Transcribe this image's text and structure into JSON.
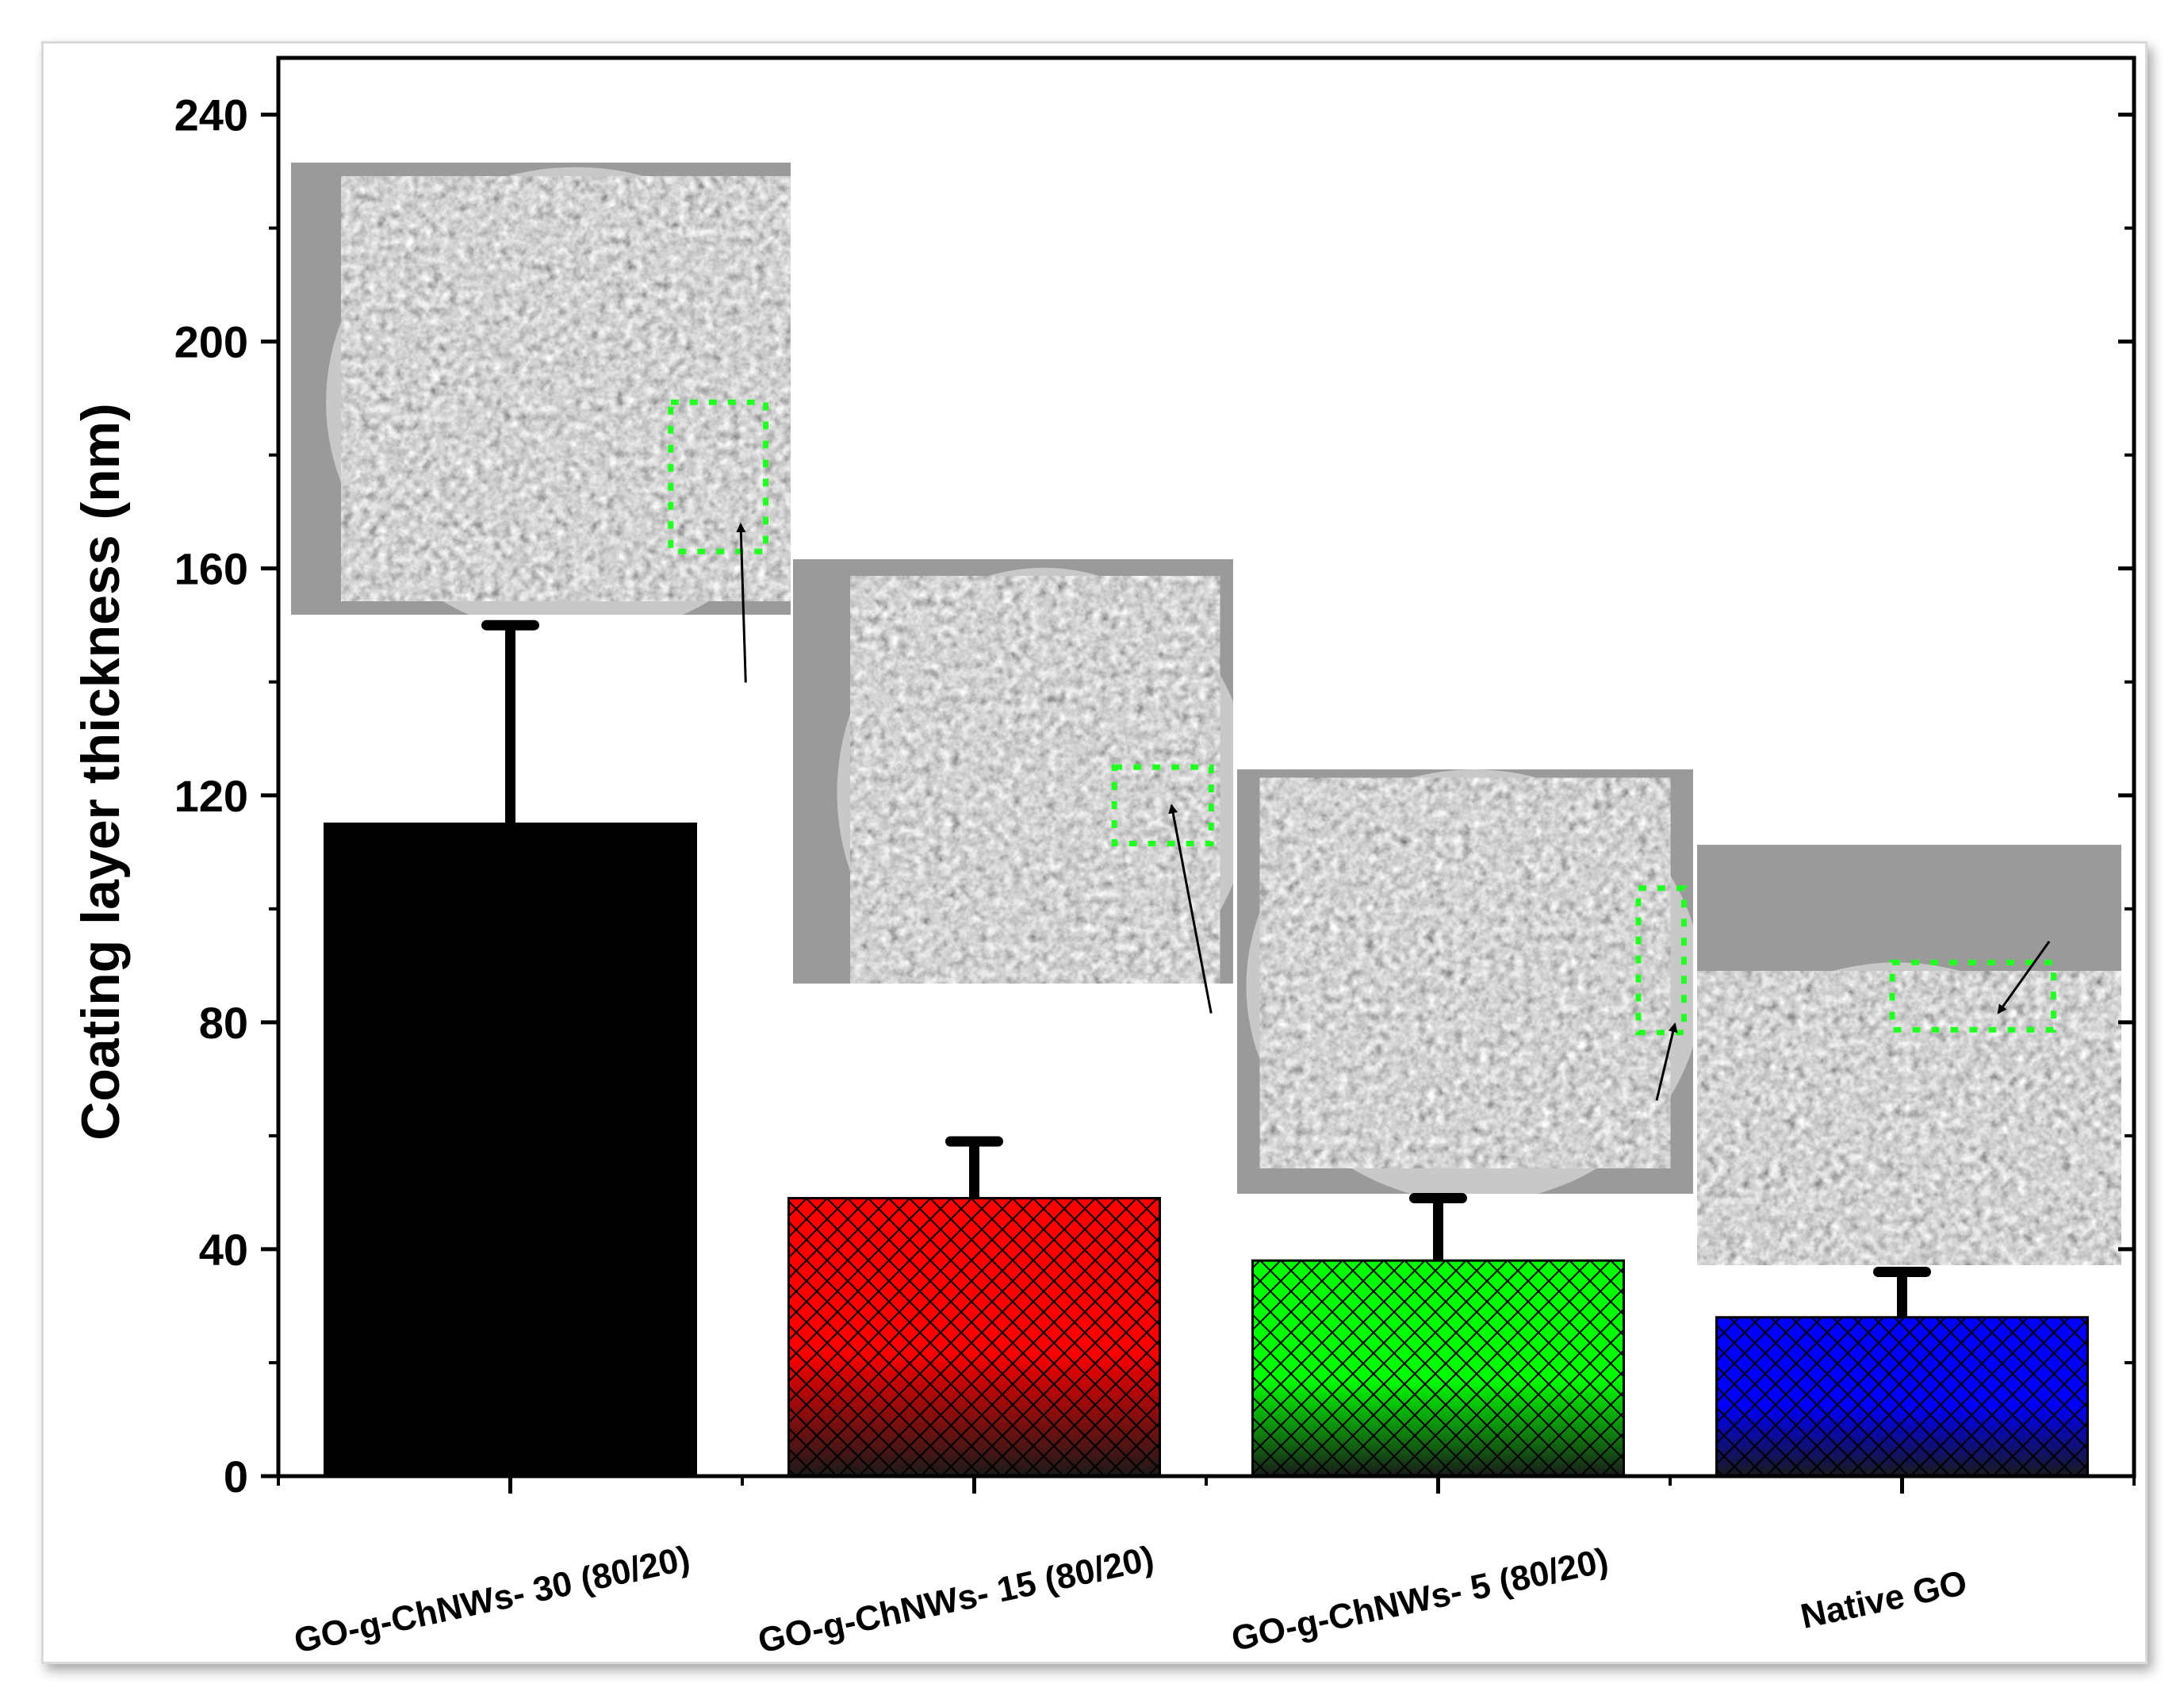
{
  "chart_data": {
    "type": "bar",
    "title": "",
    "xlabel": "",
    "ylabel": "Coating layer thickness (nm)",
    "ylim": [
      0,
      250
    ],
    "yticks": [
      0,
      40,
      80,
      120,
      160,
      200,
      240
    ],
    "grid": false,
    "legend": "none",
    "categories": [
      "GO-g-ChNWs- 30 (80/20)",
      "GO-g-ChNWs- 15 (80/20)",
      "GO-g-ChNWs- 5 (80/20)",
      "Native GO"
    ],
    "values": [
      115,
      49,
      38,
      28
    ],
    "errors": [
      35,
      10,
      11,
      8
    ],
    "colors": [
      "#000000",
      "#ff0000",
      "#00ff00",
      "#0000ff"
    ],
    "fill_pattern": [
      "solid",
      "crosshatch-gradient",
      "crosshatch-gradient",
      "crosshatch-gradient"
    ],
    "insets": [
      {
        "icon": "sem-micrograph-fiber-cross-section",
        "category": "GO-g-ChNWs- 30 (80/20)"
      },
      {
        "icon": "sem-micrograph-fiber-cross-section",
        "category": "GO-g-ChNWs- 15 (80/20)"
      },
      {
        "icon": "sem-micrograph-fiber-cross-section",
        "category": "GO-g-ChNWs- 5 (80/20)"
      },
      {
        "icon": "sem-micrograph-fiber-cross-section",
        "category": "Native GO"
      }
    ]
  }
}
